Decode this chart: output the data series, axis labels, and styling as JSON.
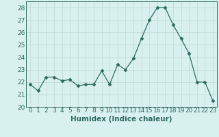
{
  "x": [
    0,
    1,
    2,
    3,
    4,
    5,
    6,
    7,
    8,
    9,
    10,
    11,
    12,
    13,
    14,
    15,
    16,
    17,
    18,
    19,
    20,
    21,
    22,
    23
  ],
  "y": [
    21.8,
    21.3,
    22.4,
    22.4,
    22.1,
    22.2,
    21.7,
    21.8,
    21.8,
    22.9,
    21.8,
    23.4,
    23.0,
    23.9,
    25.5,
    27.0,
    28.0,
    28.0,
    26.6,
    25.5,
    24.3,
    22.0,
    22.0,
    20.5
  ],
  "line_color": "#2e6b5e",
  "marker": "D",
  "marker_size": 2.5,
  "bg_color": "#d8f0ee",
  "grid_color": "#c0d8d0",
  "xlabel": "Humidex (Indice chaleur)",
  "ylim": [
    20,
    28.5
  ],
  "yticks": [
    20,
    21,
    22,
    23,
    24,
    25,
    26,
    27,
    28
  ],
  "xlim": [
    -0.5,
    23.5
  ],
  "label_fontsize": 7.5,
  "tick_fontsize": 6.5
}
